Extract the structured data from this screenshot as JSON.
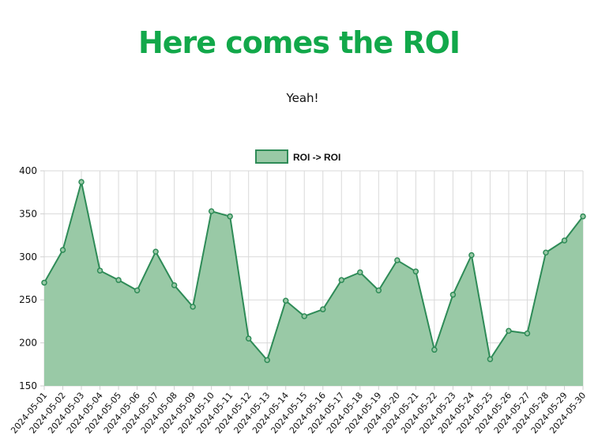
{
  "page": {
    "title": "Here comes the ROI",
    "subtitle": "Yeah!",
    "title_color": "#12a84a"
  },
  "chart_data": {
    "type": "area",
    "x": [
      "2024-05-01",
      "2024-05-02",
      "2024-05-03",
      "2024-05-04",
      "2024-05-05",
      "2024-05-06",
      "2024-05-07",
      "2024-05-08",
      "2024-05-09",
      "2024-05-10",
      "2024-05-11",
      "2024-05-12",
      "2024-05-13",
      "2024-05-14",
      "2024-05-15",
      "2024-05-16",
      "2024-05-17",
      "2024-05-18",
      "2024-05-19",
      "2024-05-20",
      "2024-05-21",
      "2024-05-22",
      "2024-05-23",
      "2024-05-24",
      "2024-05-25",
      "2024-05-26",
      "2024-05-27",
      "2024-05-28",
      "2024-05-29",
      "2024-05-30"
    ],
    "series": [
      {
        "name": "ROI -> ROI",
        "values": [
          270,
          308,
          387,
          284,
          273,
          261,
          306,
          267,
          242,
          353,
          347,
          205,
          180,
          249,
          231,
          239,
          273,
          282,
          261,
          296,
          283,
          192,
          256,
          302,
          181,
          214,
          211,
          305,
          319,
          347
        ],
        "line_color": "#2e8b57",
        "fill_color": "#99c9a6"
      }
    ],
    "ylim": [
      150,
      400
    ],
    "yticks": [
      150,
      200,
      250,
      300,
      350,
      400
    ],
    "grid": true,
    "legend": "top-center",
    "xlabel": "",
    "ylabel": ""
  }
}
